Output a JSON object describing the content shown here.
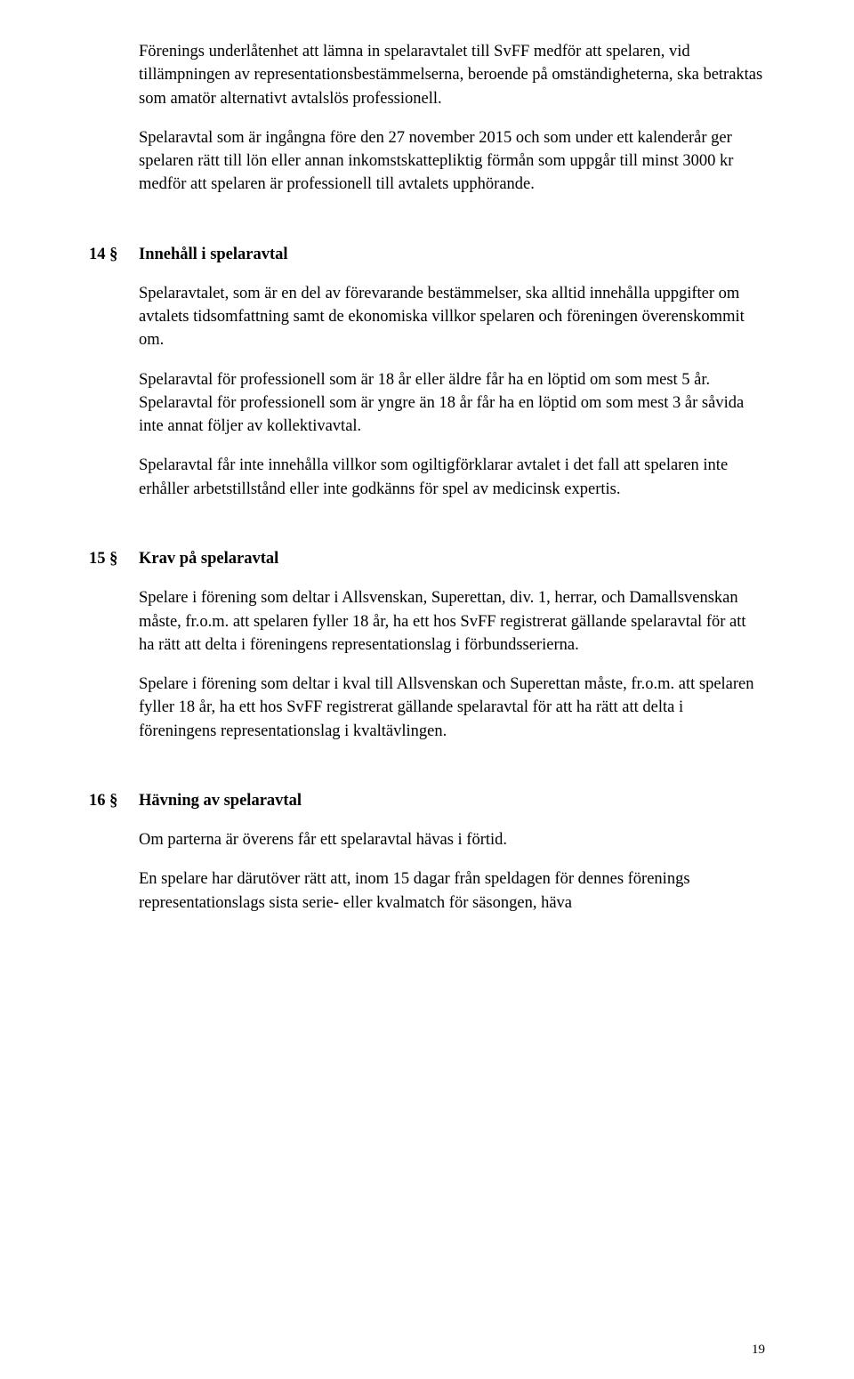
{
  "intro": {
    "p1": "Förenings underlåtenhet att lämna in spelaravtalet till SvFF medför att spelaren, vid tillämpningen av representationsbestämmelserna, beroende på omständigheterna, ska betraktas som amatör alternativt avtalslös professionell.",
    "p2": "Spelaravtal som är ingångna före den 27 november 2015 och som under ett kalenderår ger spelaren rätt till lön eller annan inkomstskattepliktig förmån som uppgår till minst 3000 kr medför att spelaren är professionell till avtalets upphörande."
  },
  "sec14": {
    "num": "14 §",
    "title": "Innehåll i spelaravtal",
    "p1": "Spelaravtalet, som är en del av förevarande bestämmelser, ska alltid innehålla uppgifter om avtalets tidsomfattning samt de ekonomiska villkor spelaren och föreningen överenskommit om.",
    "p2": "Spelaravtal för professionell som är 18 år eller äldre får ha en löptid om som mest 5 år. Spelaravtal för professionell som är yngre än 18 år får ha en löptid om som mest 3 år såvida inte annat följer av kollektivavtal.",
    "p3": "Spelaravtal får inte innehålla villkor som ogiltigförklarar avtalet i det fall att spelaren inte erhåller arbetstillstånd eller inte godkänns för spel av medicinsk expertis."
  },
  "sec15": {
    "num": "15 §",
    "title": "Krav på spelaravtal",
    "p1": "Spelare i förening som deltar i Allsvenskan, Superettan, div. 1, herrar, och Damallsvenskan måste, fr.o.m. att spelaren fyller 18 år, ha ett hos SvFF registrerat gällande spelaravtal för att ha rätt att delta i föreningens representationslag i förbundsserierna.",
    "p2": "Spelare i förening som deltar i kval till Allsvenskan och Superettan måste, fr.o.m. att spelaren fyller 18 år, ha ett hos SvFF registrerat gällande spelaravtal för att ha rätt att delta i föreningens representationslag i kvaltävlingen."
  },
  "sec16": {
    "num": "16 §",
    "title": "Hävning av spelaravtal",
    "p1": "Om parterna är överens får ett spelaravtal hävas i förtid.",
    "p2": "En spelare har därutöver rätt att, inom 15 dagar från speldagen för dennes förenings representationslags sista serie- eller kvalmatch för säsongen, häva"
  },
  "pageNumber": "19"
}
